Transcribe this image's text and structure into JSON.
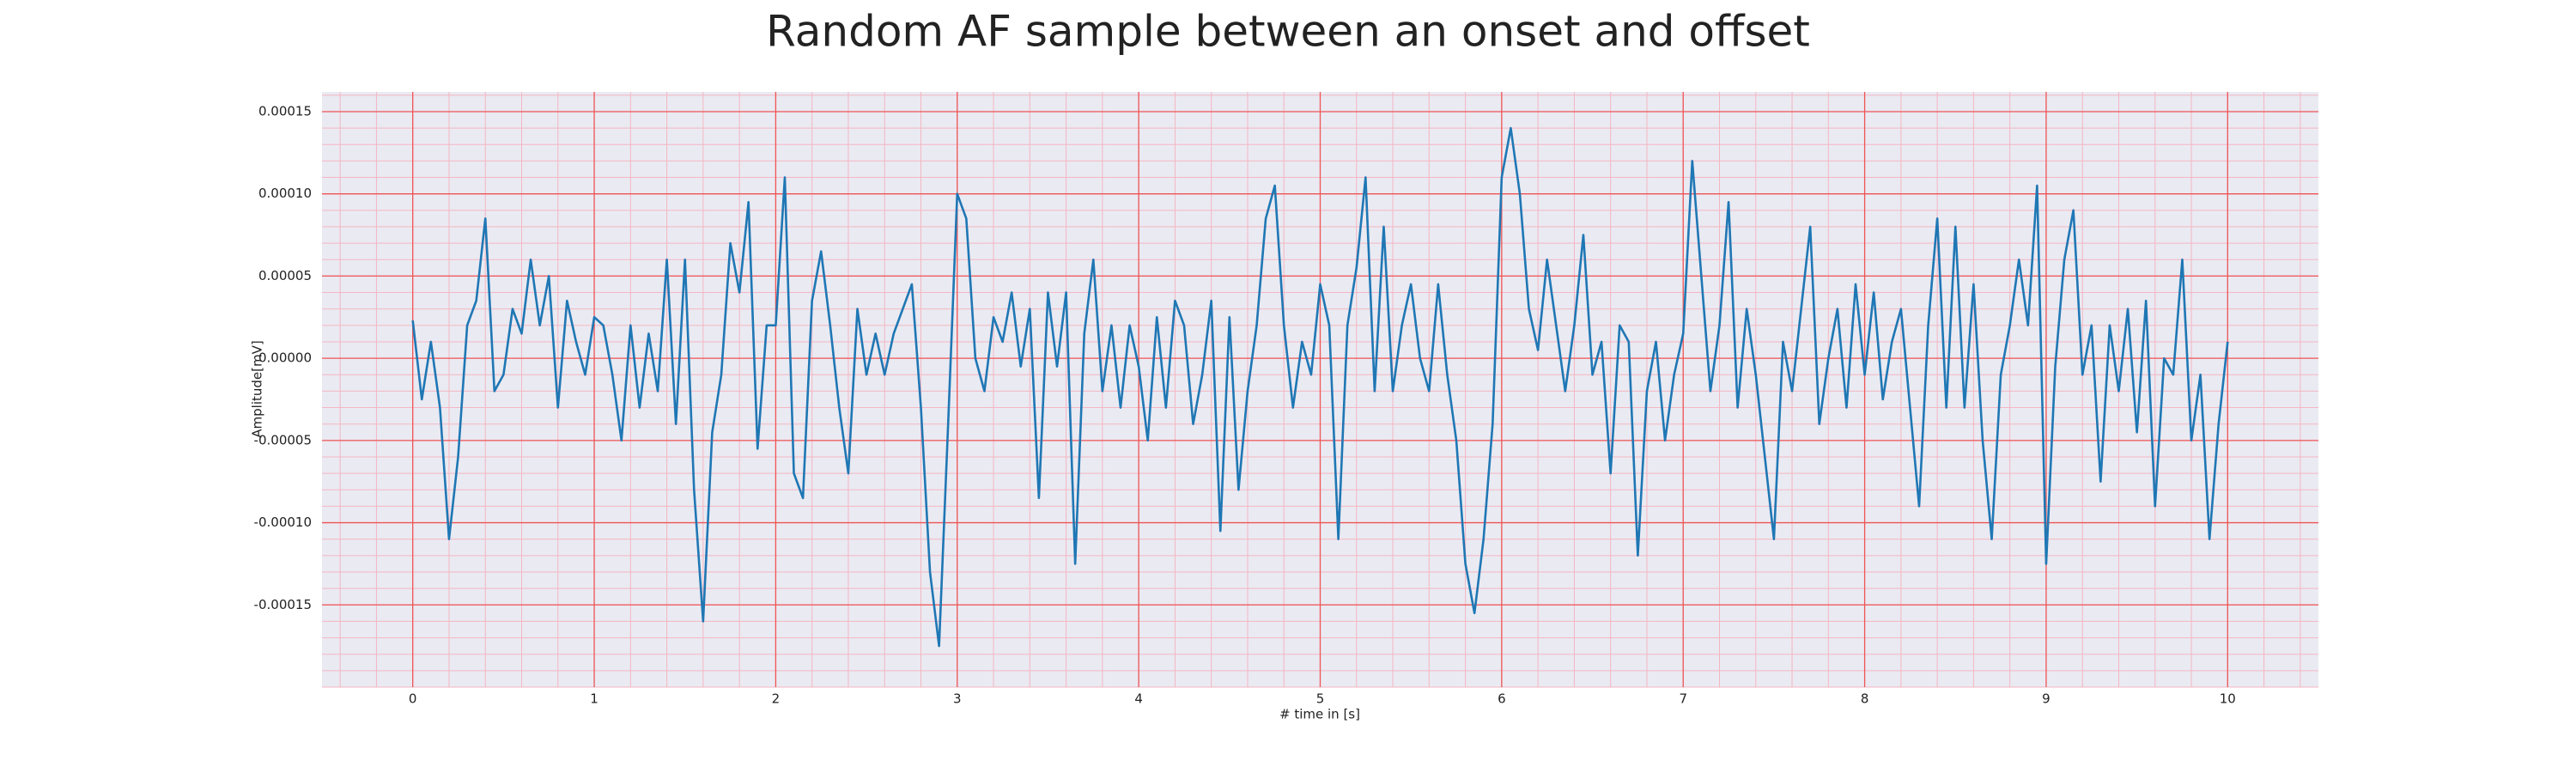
{
  "chart_data": {
    "type": "line",
    "title": "Random AF sample between an onset and offset",
    "xlabel": "# time in [s]",
    "ylabel": "Amplitude[mV]",
    "color": "#1f77b4",
    "grid": true,
    "minor_grid": true,
    "xlim": [
      -0.5,
      10.5
    ],
    "ylim": [
      -0.0002,
      0.000162
    ],
    "xticks": [
      0,
      1,
      2,
      3,
      4,
      5,
      6,
      7,
      8,
      9,
      10
    ],
    "yticks": [
      {
        "value": -0.00015,
        "label": "-0.00015"
      },
      {
        "value": -0.0001,
        "label": "-0.00010"
      },
      {
        "value": -5e-05,
        "label": "-0.00005"
      },
      {
        "value": 0,
        "label": "0.00000"
      },
      {
        "value": 5e-05,
        "label": "0.00005"
      },
      {
        "value": 0.0001,
        "label": "0.00010"
      },
      {
        "value": 0.00015,
        "label": "0.00015"
      }
    ],
    "x": [
      0,
      0.05,
      0.1,
      0.15,
      0.2,
      0.25,
      0.3,
      0.35,
      0.4,
      0.45,
      0.5,
      0.55,
      0.6,
      0.65,
      0.7,
      0.75,
      0.8,
      0.85,
      0.9,
      0.95,
      1,
      1.05,
      1.1,
      1.15,
      1.2,
      1.25,
      1.3,
      1.35,
      1.4,
      1.45,
      1.5,
      1.55,
      1.6,
      1.65,
      1.7,
      1.75,
      1.8,
      1.85,
      1.9,
      1.95,
      2,
      2.05,
      2.1,
      2.15,
      2.2,
      2.25,
      2.3,
      2.35,
      2.4,
      2.45,
      2.5,
      2.55,
      2.6,
      2.65,
      2.7,
      2.75,
      2.8,
      2.85,
      2.9,
      2.95,
      3,
      3.05,
      3.1,
      3.15,
      3.2,
      3.25,
      3.3,
      3.35,
      3.4,
      3.45,
      3.5,
      3.55,
      3.6,
      3.65,
      3.7,
      3.75,
      3.8,
      3.85,
      3.9,
      3.95,
      4,
      4.05,
      4.1,
      4.15,
      4.2,
      4.25,
      4.3,
      4.35,
      4.4,
      4.45,
      4.5,
      4.55,
      4.6,
      4.65,
      4.7,
      4.75,
      4.8,
      4.85,
      4.9,
      4.95,
      5,
      5.05,
      5.1,
      5.15,
      5.2,
      5.25,
      5.3,
      5.35,
      5.4,
      5.45,
      5.5,
      5.55,
      5.6,
      5.65,
      5.7,
      5.75,
      5.8,
      5.85,
      5.9,
      5.95,
      6,
      6.05,
      6.1,
      6.15,
      6.2,
      6.25,
      6.3,
      6.35,
      6.4,
      6.45,
      6.5,
      6.55,
      6.6,
      6.65,
      6.7,
      6.75,
      6.8,
      6.85,
      6.9,
      6.95,
      7,
      7.05,
      7.1,
      7.15,
      7.2,
      7.25,
      7.3,
      7.35,
      7.4,
      7.45,
      7.5,
      7.55,
      7.6,
      7.65,
      7.7,
      7.75,
      7.8,
      7.85,
      7.9,
      7.95,
      8,
      8.05,
      8.1,
      8.15,
      8.2,
      8.25,
      8.3,
      8.35,
      8.4,
      8.45,
      8.5,
      8.55,
      8.6,
      8.65,
      8.7,
      8.75,
      8.8,
      8.85,
      8.9,
      8.95,
      9,
      9.05,
      9.1,
      9.15,
      9.2,
      9.25,
      9.3,
      9.35,
      9.4,
      9.45,
      9.5,
      9.55,
      9.6,
      9.65,
      9.7,
      9.75,
      9.8,
      9.85,
      9.9,
      9.95,
      10
    ],
    "values": [
      2.3e-05,
      -2.5e-05,
      1e-05,
      -3e-05,
      -0.00011,
      -6e-05,
      2e-05,
      3.5e-05,
      8.5e-05,
      -2e-05,
      -1e-05,
      3e-05,
      1.5e-05,
      6e-05,
      2e-05,
      5e-05,
      -3e-05,
      3.5e-05,
      1e-05,
      -1e-05,
      2.5e-05,
      2e-05,
      -1e-05,
      -5e-05,
      2e-05,
      -3e-05,
      1.5e-05,
      -2e-05,
      6e-05,
      -4e-05,
      6e-05,
      -8e-05,
      -0.00016,
      -4.5e-05,
      -1e-05,
      7e-05,
      4e-05,
      9.5e-05,
      -5.5e-05,
      2e-05,
      2e-05,
      0.00011,
      -7e-05,
      -8.5e-05,
      3.5e-05,
      6.5e-05,
      2e-05,
      -3e-05,
      -7e-05,
      3e-05,
      -1e-05,
      1.5e-05,
      -1e-05,
      1.5e-05,
      3e-05,
      4.5e-05,
      -3e-05,
      -0.00013,
      -0.000175,
      -4e-05,
      0.0001,
      8.5e-05,
      0,
      -2e-05,
      2.5e-05,
      1e-05,
      4e-05,
      -5e-06,
      3e-05,
      -8.5e-05,
      4e-05,
      -5e-06,
      4e-05,
      -0.000125,
      1.5e-05,
      6e-05,
      -2e-05,
      2e-05,
      -3e-05,
      2e-05,
      -5e-06,
      -5e-05,
      2.5e-05,
      -3e-05,
      3.5e-05,
      2e-05,
      -4e-05,
      -1e-05,
      3.5e-05,
      -0.000105,
      2.5e-05,
      -8e-05,
      -2e-05,
      2e-05,
      8.5e-05,
      0.000105,
      2e-05,
      -3e-05,
      1e-05,
      -1e-05,
      4.5e-05,
      2e-05,
      -0.00011,
      2e-05,
      5.5e-05,
      0.00011,
      -2e-05,
      8e-05,
      -2e-05,
      2e-05,
      4.5e-05,
      0,
      -2e-05,
      4.5e-05,
      -1e-05,
      -5e-05,
      -0.000125,
      -0.000155,
      -0.00011,
      -4e-05,
      0.00011,
      0.00014,
      0.0001,
      3e-05,
      5e-06,
      6e-05,
      2e-05,
      -2e-05,
      2e-05,
      7.5e-05,
      -1e-05,
      1e-05,
      -7e-05,
      2e-05,
      1e-05,
      -0.00012,
      -2e-05,
      1e-05,
      -5e-05,
      -1e-05,
      1.5e-05,
      0.00012,
      5e-05,
      -2e-05,
      2e-05,
      9.5e-05,
      -3e-05,
      3e-05,
      -1e-05,
      -6e-05,
      -0.00011,
      1e-05,
      -2e-05,
      3e-05,
      8e-05,
      -4e-05,
      0,
      3e-05,
      -3e-05,
      4.5e-05,
      -1e-05,
      4e-05,
      -2.5e-05,
      1e-05,
      3e-05,
      -3e-05,
      -9e-05,
      2e-05,
      8.5e-05,
      -3e-05,
      8e-05,
      -3e-05,
      4.5e-05,
      -5e-05,
      -0.00011,
      -1e-05,
      2e-05,
      6e-05,
      2e-05,
      0.000105,
      -0.000125,
      -5e-06,
      6e-05,
      9e-05,
      -1e-05,
      2e-05,
      -7.5e-05,
      2e-05,
      -2e-05,
      3e-05,
      -4.5e-05,
      3.5e-05,
      -9e-05,
      0,
      -1e-05,
      6e-05,
      -5e-05,
      -1e-05,
      -0.00011,
      -4e-05,
      1e-05
    ]
  }
}
